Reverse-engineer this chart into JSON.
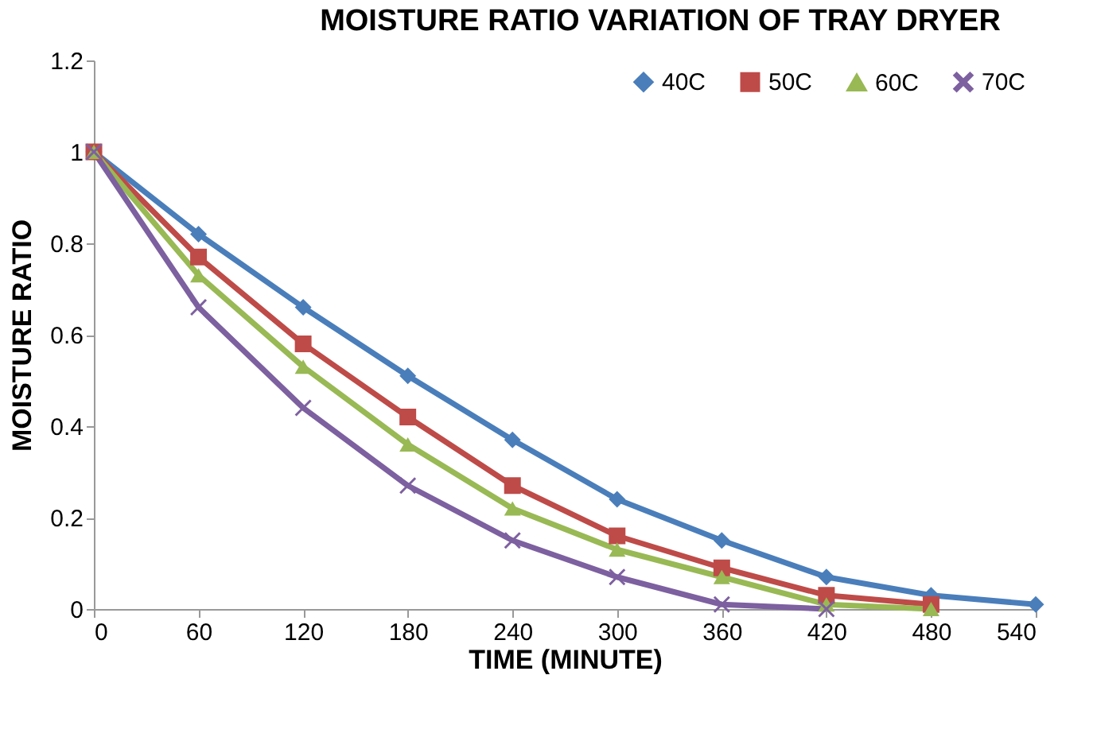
{
  "chart_data": {
    "type": "line",
    "title": "MOISTURE RATIO VARIATION OF TRAY DRYER",
    "xlabel": "TIME (MINUTE)",
    "ylabel": "MOISTURE RATIO",
    "x": [
      0,
      60,
      120,
      180,
      240,
      300,
      360,
      420,
      480,
      540
    ],
    "series": [
      {
        "name": "40C",
        "color": "#4a7ebb",
        "marker": "diamond",
        "values": [
          1,
          0.82,
          0.66,
          0.51,
          0.37,
          0.24,
          0.15,
          0.07,
          0.03,
          0.01
        ]
      },
      {
        "name": "50C",
        "color": "#be4b48",
        "marker": "square",
        "values": [
          1,
          0.77,
          0.58,
          0.42,
          0.27,
          0.16,
          0.09,
          0.03,
          0.01,
          null
        ]
      },
      {
        "name": "60C",
        "color": "#98b954",
        "marker": "triangle",
        "values": [
          1,
          0.73,
          0.53,
          0.36,
          0.22,
          0.13,
          0.07,
          0.01,
          0.0,
          null
        ]
      },
      {
        "name": "70C",
        "color": "#7d60a0",
        "marker": "cross",
        "values": [
          1,
          0.66,
          0.44,
          0.27,
          0.15,
          0.07,
          0.01,
          0.0,
          null,
          null
        ]
      }
    ],
    "xlim": [
      0,
      540
    ],
    "xticks": [
      0,
      60,
      120,
      180,
      240,
      300,
      360,
      420,
      480,
      540
    ],
    "ylim": [
      0,
      1.2
    ],
    "yticks": [
      0,
      0.2,
      0.4,
      0.6,
      0.8,
      1,
      1.2
    ],
    "grid": false,
    "legend": "top right",
    "line_style": "solid"
  }
}
